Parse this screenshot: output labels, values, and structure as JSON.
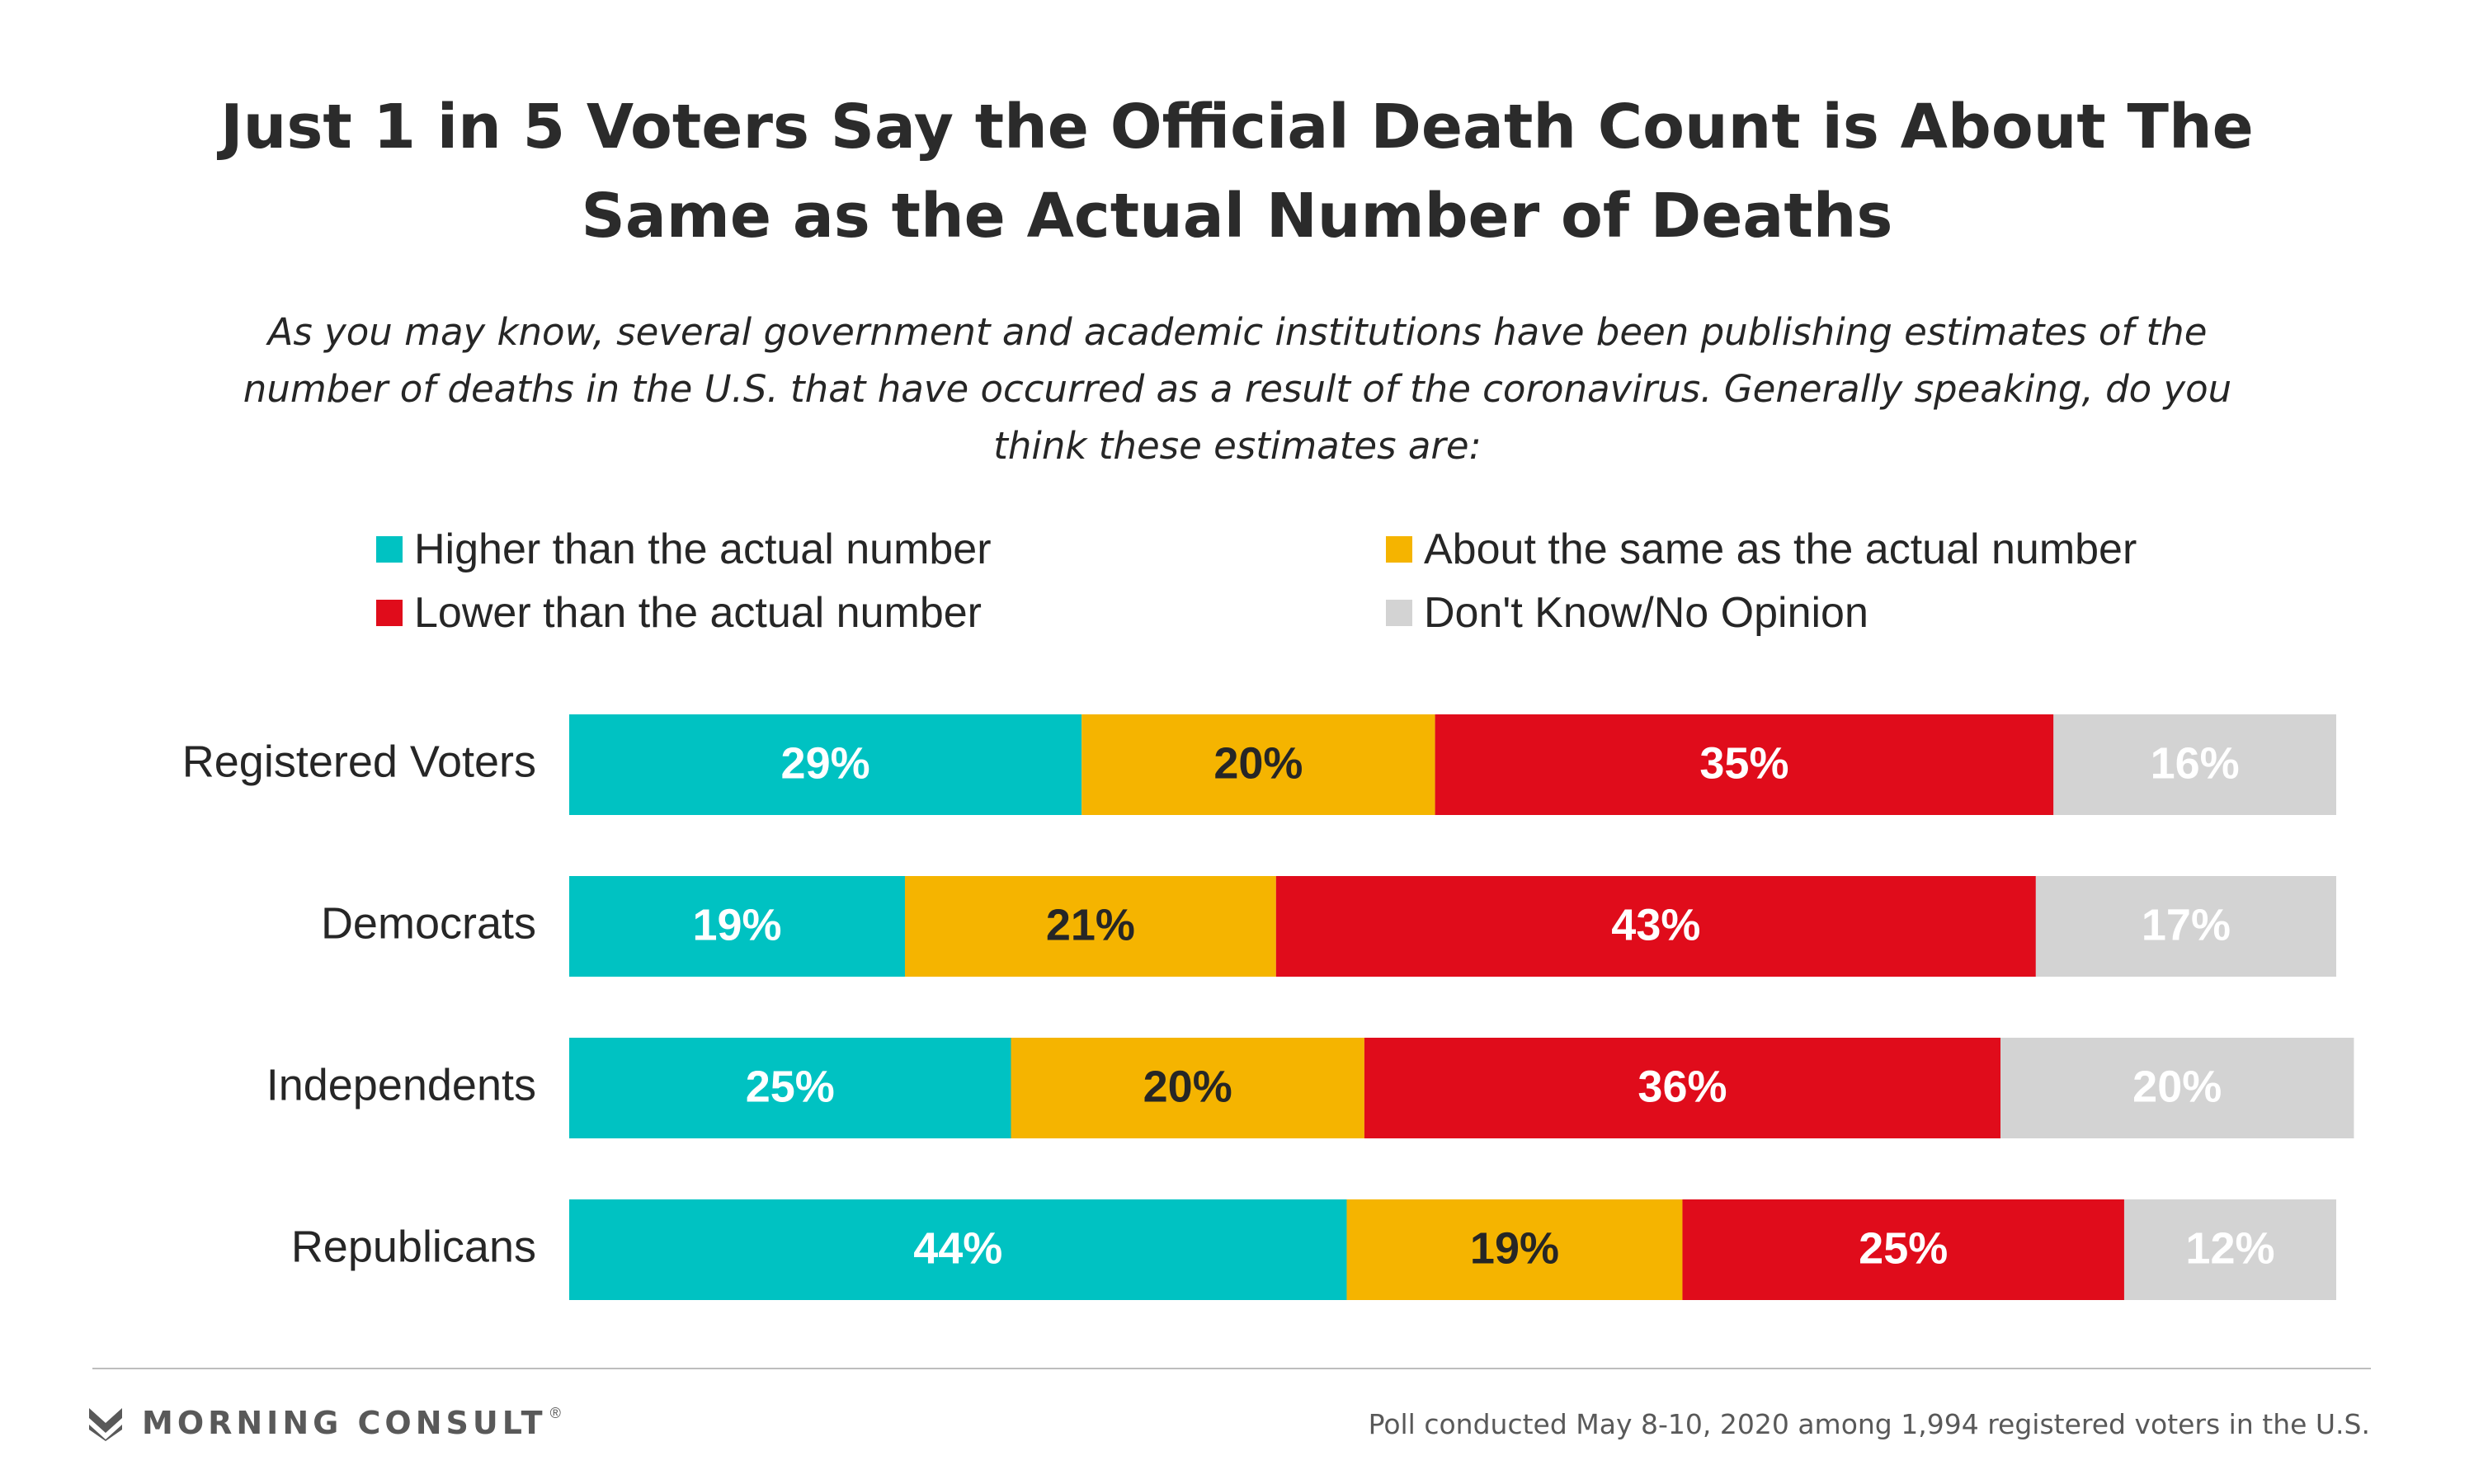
{
  "title_lines": [
    "Just 1 in 5 Voters Say the Official Death Count is About The",
    "Same as the Actual Number of Deaths"
  ],
  "subtitle_lines": [
    "As you may know, several government and academic institutions have been publishing estimates of the",
    "number of deaths in the U.S. that have occurred as a result of the coronavirus. Generally speaking, do you",
    "think these estimates are:"
  ],
  "chart_data": {
    "type": "bar",
    "orientation": "horizontal-stacked-100",
    "categories": [
      "Registered Voters",
      "Democrats",
      "Independents",
      "Republicans"
    ],
    "series": [
      {
        "name": "Higher than the actual number",
        "color": "#00c2c2",
        "label_color": "#ffffff",
        "values": [
          29,
          19,
          25,
          44
        ]
      },
      {
        "name": "About the same as the actual number",
        "color": "#f5b400",
        "label_color": "#262626",
        "values": [
          20,
          21,
          20,
          19
        ]
      },
      {
        "name": "Lower than the actual number",
        "color": "#e00c1b",
        "label_color": "#ffffff",
        "values": [
          35,
          43,
          36,
          25
        ]
      },
      {
        "name": "Don't Know/No Opinion",
        "color": "#d3d3d3",
        "label_color": "#ffffff",
        "values": [
          16,
          17,
          20,
          12
        ]
      }
    ],
    "value_suffix": "%",
    "xlim": [
      0,
      100
    ],
    "legend_position": "top",
    "grid": false
  },
  "footer": {
    "brand": "MORNING CONSULT",
    "registered_mark": "®",
    "note": "Poll conducted  May 8-10, 2020 among 1,994 registered voters in the U.S."
  }
}
